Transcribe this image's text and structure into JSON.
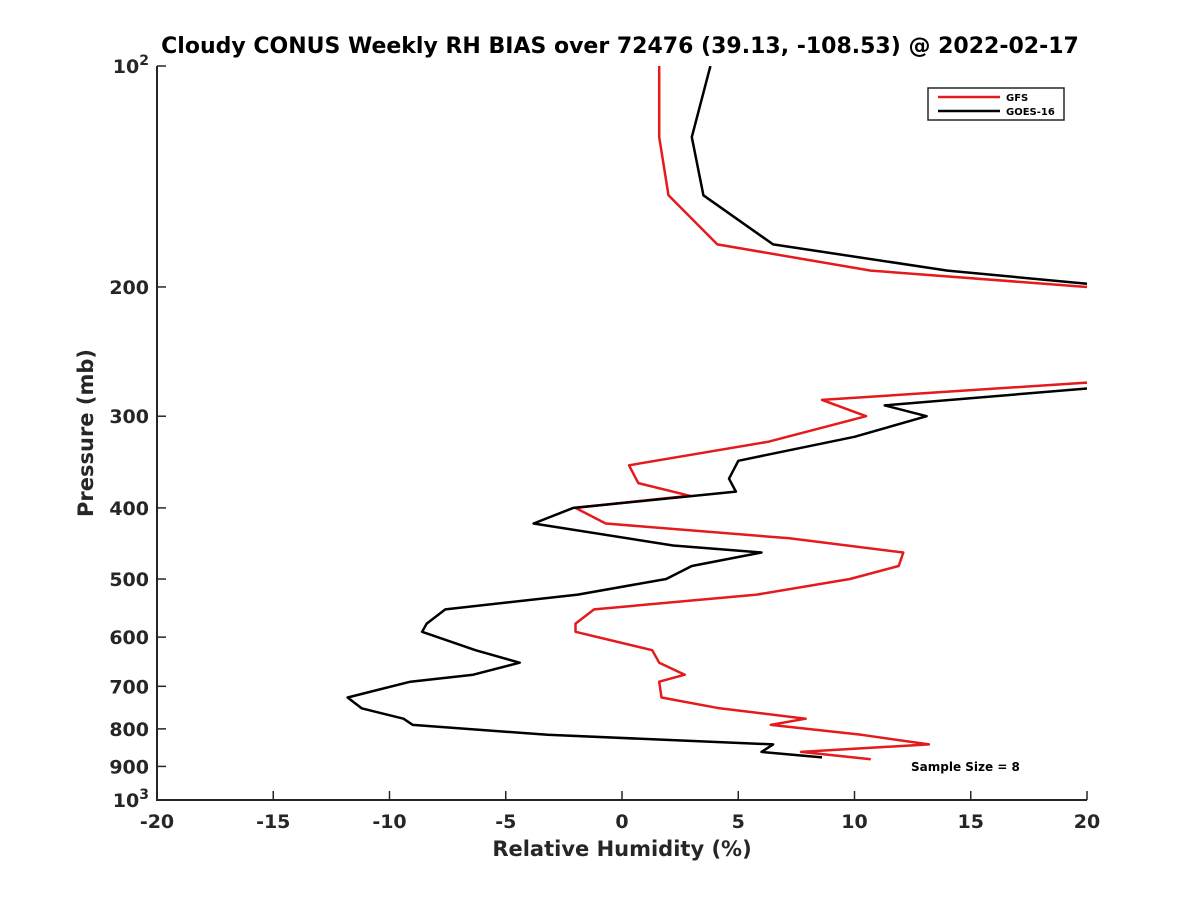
{
  "chart_data": {
    "type": "line",
    "title": "Cloudy CONUS Weekly RH BIAS over 72476 (39.13, -108.53) @ 2022-02-17",
    "xlabel": "Relative Humidity (%)",
    "ylabel": "Pressure (mb)",
    "xlim": [
      -20,
      20
    ],
    "ylim": [
      100,
      1000
    ],
    "y_scale": "log",
    "y_reversed": true,
    "x_ticks": [
      "-20",
      "-15",
      "-10",
      "-5",
      "0",
      "5",
      "10",
      "15",
      "20"
    ],
    "y_ticks": [
      {
        "value": 100,
        "base": "10",
        "exp": "2"
      },
      {
        "value": 200,
        "label": "200"
      },
      {
        "value": 300,
        "label": "300"
      },
      {
        "value": 400,
        "label": "400"
      },
      {
        "value": 500,
        "label": "500"
      },
      {
        "value": 600,
        "label": "600"
      },
      {
        "value": 700,
        "label": "700"
      },
      {
        "value": 800,
        "label": "800"
      },
      {
        "value": 900,
        "label": "900"
      },
      {
        "value": 1000,
        "base": "10",
        "exp": "3"
      }
    ],
    "grid": false,
    "legend_position": "top-right",
    "annotation": "Sample Size = 8",
    "series": [
      {
        "name": "GFS",
        "color": "#e41a1c",
        "segments": [
          [
            {
              "x": 1.6,
              "y": 100
            },
            {
              "x": 1.6,
              "y": 125
            },
            {
              "x": 2.0,
              "y": 150
            },
            {
              "x": 4.1,
              "y": 175
            },
            {
              "x": 10.7,
              "y": 190
            },
            {
              "x": 20.0,
              "y": 200
            }
          ],
          [
            {
              "x": 20.0,
              "y": 270
            },
            {
              "x": 8.6,
              "y": 285
            },
            {
              "x": 10.5,
              "y": 300
            },
            {
              "x": 6.3,
              "y": 325
            },
            {
              "x": 0.3,
              "y": 350
            },
            {
              "x": 0.7,
              "y": 370
            },
            {
              "x": 2.9,
              "y": 385
            },
            {
              "x": -2.0,
              "y": 400
            },
            {
              "x": -0.7,
              "y": 420
            },
            {
              "x": 7.2,
              "y": 440
            },
            {
              "x": 12.1,
              "y": 460
            },
            {
              "x": 11.9,
              "y": 480
            },
            {
              "x": 9.8,
              "y": 500
            },
            {
              "x": 5.8,
              "y": 525
            },
            {
              "x": -1.2,
              "y": 550
            },
            {
              "x": -2.0,
              "y": 575
            },
            {
              "x": -2.0,
              "y": 590
            },
            {
              "x": 1.3,
              "y": 625
            },
            {
              "x": 1.6,
              "y": 650
            },
            {
              "x": 2.7,
              "y": 675
            },
            {
              "x": 1.6,
              "y": 690
            },
            {
              "x": 1.7,
              "y": 725
            },
            {
              "x": 4.2,
              "y": 750
            },
            {
              "x": 7.9,
              "y": 775
            },
            {
              "x": 6.4,
              "y": 790
            },
            {
              "x": 10.3,
              "y": 815
            },
            {
              "x": 13.2,
              "y": 840
            },
            {
              "x": 7.7,
              "y": 860
            },
            {
              "x": 10.7,
              "y": 880
            }
          ]
        ]
      },
      {
        "name": "GOES-16",
        "color": "#000000",
        "segments": [
          [
            {
              "x": 3.8,
              "y": 100
            },
            {
              "x": 3.0,
              "y": 125
            },
            {
              "x": 3.5,
              "y": 150
            },
            {
              "x": 6.5,
              "y": 175
            },
            {
              "x": 14.0,
              "y": 190
            },
            {
              "x": 20.0,
              "y": 198
            }
          ],
          [
            {
              "x": 20.0,
              "y": 275
            },
            {
              "x": 11.3,
              "y": 290
            },
            {
              "x": 13.1,
              "y": 300
            },
            {
              "x": 10.0,
              "y": 320
            },
            {
              "x": 5.0,
              "y": 345
            },
            {
              "x": 4.6,
              "y": 365
            },
            {
              "x": 4.9,
              "y": 380
            },
            {
              "x": -2.1,
              "y": 400
            },
            {
              "x": -3.8,
              "y": 420
            },
            {
              "x": 2.2,
              "y": 450
            },
            {
              "x": 6.0,
              "y": 460
            },
            {
              "x": 3.0,
              "y": 480
            },
            {
              "x": 1.9,
              "y": 500
            },
            {
              "x": -1.9,
              "y": 525
            },
            {
              "x": -7.6,
              "y": 550
            },
            {
              "x": -8.4,
              "y": 575
            },
            {
              "x": -8.6,
              "y": 590
            },
            {
              "x": -6.3,
              "y": 625
            },
            {
              "x": -4.4,
              "y": 650
            },
            {
              "x": -6.4,
              "y": 675
            },
            {
              "x": -9.1,
              "y": 690
            },
            {
              "x": -11.8,
              "y": 725
            },
            {
              "x": -11.2,
              "y": 750
            },
            {
              "x": -9.4,
              "y": 775
            },
            {
              "x": -9.0,
              "y": 790
            },
            {
              "x": -3.2,
              "y": 815
            },
            {
              "x": 6.5,
              "y": 840
            },
            {
              "x": 6.0,
              "y": 860
            },
            {
              "x": 8.6,
              "y": 875
            }
          ]
        ]
      }
    ]
  }
}
